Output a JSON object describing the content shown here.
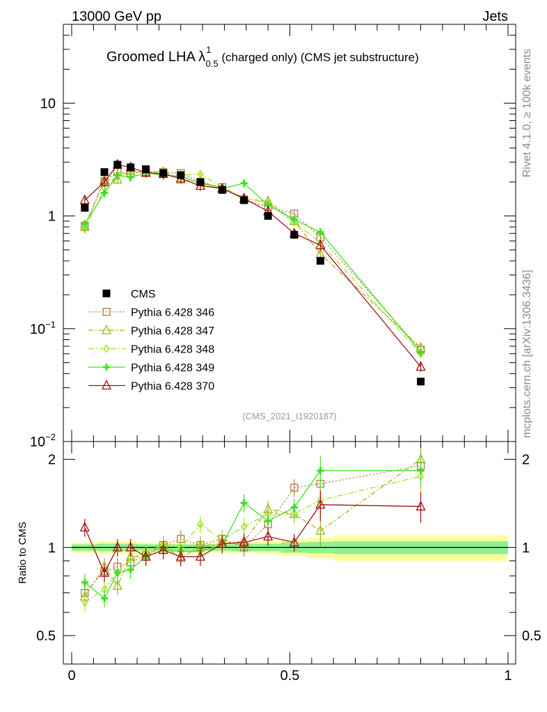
{
  "header": {
    "left": "13000 GeV pp",
    "right": "Jets"
  },
  "side_labels": {
    "rivet": "Rivet 4.1.0, ≥ 100k events",
    "mcplots": "mcplots.cern.ch [arXiv:1306.3436]"
  },
  "title": {
    "main": "Groomed LHA λ",
    "sup": "1",
    "sub": "0.5",
    "rest": " (charged only) (CMS jet substructure)"
  },
  "analysis_tag": "(CMS_2021_I1920187)",
  "ratio_ylabel": "Ratio to CMS",
  "colors": {
    "CMS": "#000000",
    "s346": "#b07a40",
    "s347": "#a8b020",
    "s348": "#a0e020",
    "s349": "#40e020",
    "s370": "#a01010",
    "band_inner": "#90f090",
    "band_outer": "#ffff99"
  },
  "chart_data": {
    "type": "line",
    "xlim": [
      0,
      1
    ],
    "ylim_main": [
      0.01,
      50
    ],
    "yscale_main": "log",
    "ylim_ratio": [
      0.4,
      2.3
    ],
    "yscale_ratio": "log",
    "x_ticks": [
      {
        "v": 0,
        "label": "0"
      },
      {
        "v": 0.5,
        "label": "0.5"
      },
      {
        "v": 1,
        "label": "1"
      }
    ],
    "main_y_ticks": [
      {
        "v": 10,
        "base": "10",
        "exp": ""
      },
      {
        "v": 1,
        "base": "1",
        "exp": ""
      },
      {
        "v": 0.1,
        "base": "10",
        "exp": "−1"
      },
      {
        "v": 0.01,
        "base": "10",
        "exp": "−2"
      }
    ],
    "ratio_y_ticks": [
      {
        "v": 2,
        "label": "2"
      },
      {
        "v": 1,
        "label": "1"
      },
      {
        "v": 0.5,
        "label": "0.5"
      }
    ],
    "x": [
      0.03,
      0.075,
      0.105,
      0.135,
      0.17,
      0.21,
      0.25,
      0.295,
      0.345,
      0.395,
      0.45,
      0.51,
      0.57,
      0.8
    ],
    "bin_edges": [
      0,
      0.06,
      0.09,
      0.12,
      0.15,
      0.19,
      0.23,
      0.27,
      0.32,
      0.37,
      0.42,
      0.48,
      0.54,
      0.6,
      1.0
    ],
    "band_inner": [
      0.025,
      0.03,
      0.03,
      0.03,
      0.025,
      0.025,
      0.025,
      0.025,
      0.025,
      0.03,
      0.03,
      0.04,
      0.045,
      0.05
    ],
    "band_outer": [
      0.04,
      0.05,
      0.05,
      0.05,
      0.04,
      0.04,
      0.035,
      0.04,
      0.04,
      0.04,
      0.05,
      0.065,
      0.08,
      0.1
    ],
    "cms": {
      "name": "CMS",
      "values": [
        1.18,
        2.45,
        2.85,
        2.7,
        2.6,
        2.4,
        2.3,
        2.0,
        1.7,
        1.38,
        1.0,
        0.68,
        0.4,
        0.034
      ]
    },
    "series": [
      {
        "name": "Pythia 6.428 346",
        "key": "s346",
        "dash": "2,3",
        "marker": "square",
        "values": [
          0.82,
          2.05,
          2.45,
          2.4,
          2.45,
          2.45,
          2.4,
          2.0,
          1.8,
          1.4,
          1.2,
          1.05,
          0.65,
          0.065
        ],
        "ratio": [
          0.7,
          0.83,
          0.86,
          0.89,
          0.94,
          1.02,
          1.07,
          1.02,
          1.07,
          1.0,
          1.2,
          1.6,
          1.65,
          1.9
        ]
      },
      {
        "name": "Pythia 6.428 347",
        "key": "s347",
        "dash": "7,3,2,3",
        "marker": "triangle",
        "values": [
          0.8,
          2.1,
          2.1,
          2.5,
          2.4,
          2.45,
          2.1,
          2.0,
          1.75,
          1.42,
          1.35,
          0.9,
          0.46,
          0.068
        ],
        "ratio": [
          0.68,
          0.86,
          0.74,
          0.93,
          0.93,
          1.02,
          0.92,
          1.01,
          1.03,
          1.05,
          1.35,
          1.3,
          1.14,
          2.0
        ]
      },
      {
        "name": "Pythia 6.428 348",
        "key": "s348",
        "dash": "8,3,2,3",
        "marker": "diamond",
        "values": [
          0.76,
          1.75,
          2.3,
          2.45,
          2.5,
          2.45,
          2.3,
          2.35,
          1.8,
          1.45,
          1.3,
          0.88,
          0.58,
          0.06
        ],
        "ratio": [
          0.65,
          0.72,
          0.82,
          0.92,
          0.96,
          1.02,
          1.0,
          1.2,
          1.06,
          1.18,
          1.3,
          1.3,
          1.45,
          1.75
        ]
      },
      {
        "name": "Pythia 6.428 349",
        "key": "s349",
        "dash": "",
        "marker": "cross",
        "values": [
          0.85,
          1.6,
          2.3,
          2.2,
          2.4,
          2.3,
          2.25,
          1.95,
          1.75,
          1.95,
          1.25,
          0.93,
          0.72,
          0.062
        ],
        "ratio": [
          0.76,
          0.67,
          0.82,
          0.84,
          0.93,
          0.98,
          0.97,
          0.97,
          1.02,
          1.42,
          1.23,
          1.37,
          1.83,
          1.83
        ]
      },
      {
        "name": "Pythia 6.428 370",
        "key": "s370",
        "dash": "",
        "marker": "triangle",
        "values": [
          1.38,
          2.0,
          2.85,
          2.7,
          2.42,
          2.35,
          2.15,
          1.85,
          1.75,
          1.43,
          1.1,
          0.7,
          0.55,
          0.046
        ],
        "ratio": [
          1.17,
          0.82,
          1.0,
          1.0,
          0.93,
          0.98,
          0.93,
          0.93,
          1.03,
          1.04,
          1.09,
          1.04,
          1.4,
          1.38
        ]
      }
    ]
  }
}
